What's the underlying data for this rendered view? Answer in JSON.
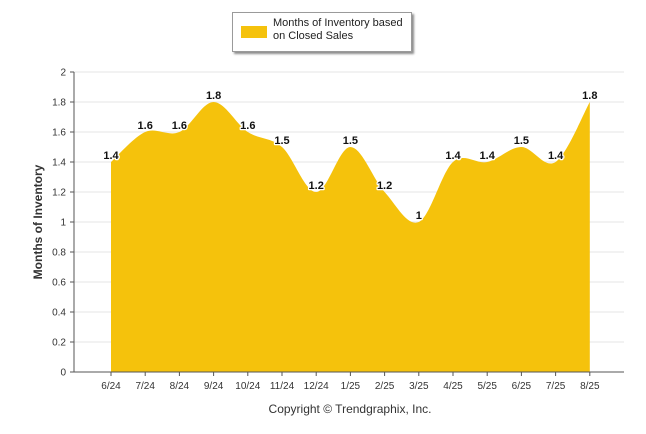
{
  "legend": {
    "label": "Months of Inventory based on Closed Sales"
  },
  "copyright": "Copyright © Trendgraphix, Inc.",
  "colors": {
    "series": "#f5c20c",
    "grid": "#e4e4e4",
    "axis": "#555555"
  },
  "chart_data": {
    "type": "area",
    "title": "",
    "xlabel": "",
    "ylabel": "Months of Inventory",
    "categories": [
      "6/24",
      "7/24",
      "8/24",
      "9/24",
      "10/24",
      "11/24",
      "12/24",
      "1/25",
      "2/25",
      "3/25",
      "4/25",
      "5/25",
      "6/25",
      "7/25",
      "8/25"
    ],
    "series": [
      {
        "name": "Months of Inventory based on Closed Sales",
        "values": [
          1.4,
          1.6,
          1.6,
          1.8,
          1.6,
          1.5,
          1.2,
          1.5,
          1.2,
          1,
          1.4,
          1.4,
          1.5,
          1.4,
          1.8
        ],
        "data_labels": [
          "1.4",
          "1.6",
          "1.6",
          "1.8",
          "1.6",
          "1.5",
          "1.2",
          "1.5",
          "1.2",
          "1",
          "1.4",
          "1.4",
          "1.5",
          "1.4",
          "1.8"
        ]
      }
    ],
    "ylim": [
      0,
      2
    ],
    "yticks": [
      "0",
      "0.2",
      "0.4",
      "0.6",
      "0.8",
      "1",
      "1.2",
      "1.4",
      "1.6",
      "1.8",
      "2"
    ],
    "grid": true,
    "smooth": true,
    "legend_position": "top"
  }
}
